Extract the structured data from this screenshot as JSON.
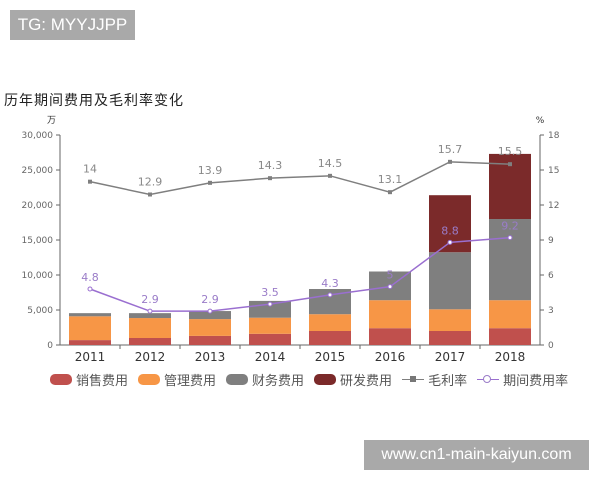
{
  "badge": {
    "text": "TG: MYYJJPP"
  },
  "watermark": {
    "text": "www.cn1-main-kaiyun.com"
  },
  "colors": {
    "sales": "#c0504d",
    "admin": "#f79646",
    "finance": "#7f7f7f",
    "rnd": "#7b2a2a",
    "gross_margin": "#7f7f7f",
    "expense_rate": "#9a6fd0"
  },
  "chart_data": {
    "type": "bar",
    "title": "历年期间费用及毛利率变化",
    "xlabel": "",
    "ylabel": "万",
    "y2label": "%",
    "ylim": [
      0,
      30000
    ],
    "y2lim": [
      0,
      18
    ],
    "yticks": [
      "0",
      "5,000",
      "10,000",
      "15,000",
      "20,000",
      "25,000",
      "30,000"
    ],
    "y2ticks": [
      "0",
      "3",
      "6",
      "9",
      "12",
      "15",
      "18"
    ],
    "grid": false,
    "legend_position": "bottom",
    "stacked": true,
    "categories": [
      "2011",
      "2012",
      "2013",
      "2014",
      "2015",
      "2016",
      "2017",
      "2018"
    ],
    "series": [
      {
        "name": "销售费用",
        "type": "bar",
        "axis": "left",
        "values": [
          700,
          1000,
          1300,
          1600,
          2000,
          2400,
          2000,
          2400
        ]
      },
      {
        "name": "管理费用",
        "type": "bar",
        "axis": "left",
        "values": [
          3400,
          2850,
          2400,
          2300,
          2400,
          4000,
          3100,
          4000
        ]
      },
      {
        "name": "财务费用",
        "type": "bar",
        "axis": "left",
        "values": [
          450,
          700,
          1150,
          2400,
          3600,
          4100,
          8150,
          11600
        ]
      },
      {
        "name": "研发费用",
        "type": "bar",
        "axis": "left",
        "values": [
          0,
          0,
          0,
          0,
          0,
          0,
          8150,
          9300
        ]
      },
      {
        "name": "毛利率",
        "type": "line",
        "axis": "right",
        "values": [
          14,
          12.9,
          13.9,
          14.3,
          14.5,
          13.1,
          15.7,
          15.5
        ]
      },
      {
        "name": "期间费用率",
        "type": "line",
        "axis": "right",
        "values": [
          4.8,
          2.9,
          2.9,
          3.5,
          4.3,
          5,
          8.8,
          9.2
        ]
      }
    ],
    "annotations": {
      "gross_margin_labels": [
        "14",
        "12.9",
        "13.9",
        "14.3",
        "14.5",
        "13.1",
        "15.7",
        "15.5"
      ],
      "expense_rate_labels": [
        "4.8",
        "2.9",
        "2.9",
        "3.5",
        "4.3",
        "5",
        "8.8",
        "9.2"
      ]
    }
  },
  "legend": {
    "items": [
      {
        "label": "销售费用",
        "kind": "bar",
        "color": "#c0504d"
      },
      {
        "label": "管理费用",
        "kind": "bar",
        "color": "#f79646"
      },
      {
        "label": "财务费用",
        "kind": "bar",
        "color": "#7f7f7f"
      },
      {
        "label": "研发费用",
        "kind": "bar",
        "color": "#7b2a2a"
      },
      {
        "label": "毛利率",
        "kind": "line-square",
        "color": "#7f7f7f"
      },
      {
        "label": "期间费用率",
        "kind": "line-circle",
        "color": "#9a6fd0"
      }
    ]
  }
}
